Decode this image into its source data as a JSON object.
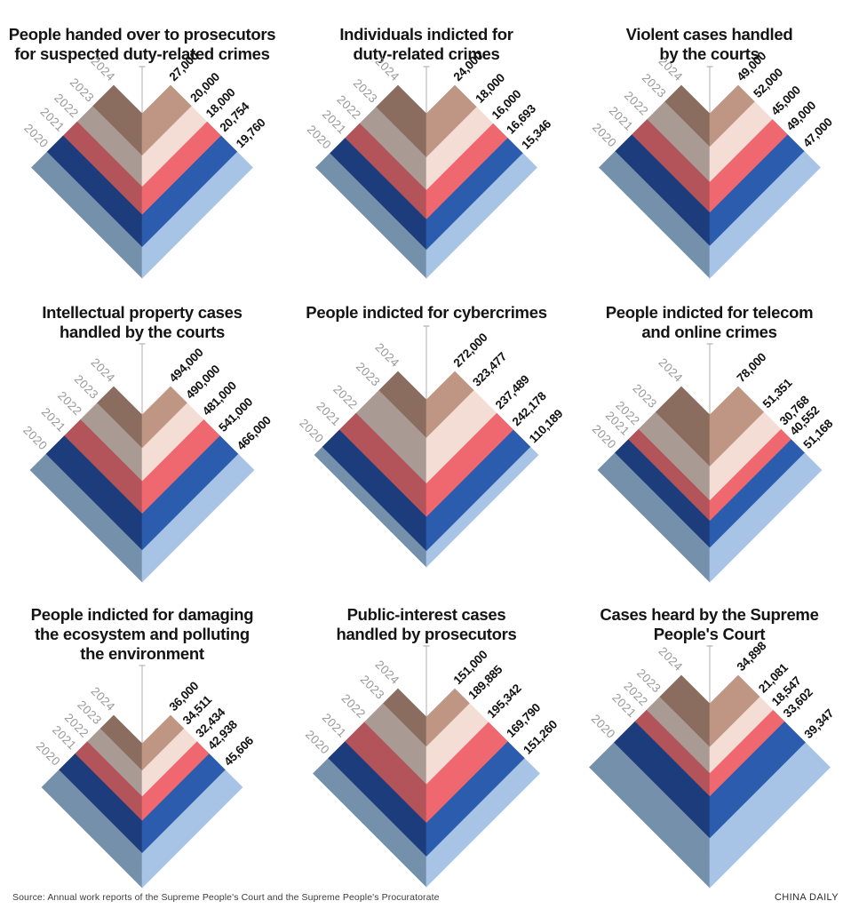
{
  "style": {
    "background": "#ffffff",
    "axis_line_color": "#b0b0b0",
    "year_label_color": "#9b9b9b",
    "value_label_color": "#111111",
    "title_color": "#141414",
    "band_colors": {
      "2024": {
        "left": "#8a6d5f",
        "right": "#be9683"
      },
      "2023": {
        "left": "#a99b94",
        "right": "#f3ddd5"
      },
      "2022": {
        "left": "#b3535a",
        "right": "#f0686f"
      },
      "2021": {
        "left": "#1d3c7c",
        "right": "#2b5cae"
      },
      "2020": {
        "left": "#7590ab",
        "right": "#a7c4e6"
      }
    }
  },
  "chart_data": [
    {
      "type": "bar",
      "variant": "nested-chevron",
      "title": "People handed over to prosecutors\nfor suspected duty-related crimes",
      "categories": [
        "2024",
        "2023",
        "2022",
        "2021",
        "2020"
      ],
      "values": [
        27000,
        20000,
        18000,
        20754,
        19760
      ],
      "value_labels": [
        "27,000",
        "20,000",
        "18,000",
        "20,754",
        "19,760"
      ],
      "layout": "years labeled on upper-left edge, values on upper-right edge, innermost band = 2024"
    },
    {
      "type": "bar",
      "variant": "nested-chevron",
      "title": "Individuals indicted for\nduty-related crimes",
      "categories": [
        "2024",
        "2023",
        "2022",
        "2021",
        "2020"
      ],
      "values": [
        24000,
        18000,
        16000,
        16693,
        15346
      ],
      "value_labels": [
        "24,000",
        "18,000",
        "16,000",
        "16,693",
        "15,346"
      ]
    },
    {
      "type": "bar",
      "variant": "nested-chevron",
      "title": "Violent cases handled\nby the courts",
      "categories": [
        "2024",
        "2023",
        "2022",
        "2021",
        "2020"
      ],
      "values": [
        49000,
        52000,
        45000,
        49000,
        47000
      ],
      "value_labels": [
        "49,000",
        "52,000",
        "45,000",
        "49,000",
        "47,000"
      ]
    },
    {
      "type": "bar",
      "variant": "nested-chevron",
      "title": "Intellectual property cases\nhandled by the courts",
      "categories": [
        "2024",
        "2023",
        "2022",
        "2021",
        "2020"
      ],
      "values": [
        494000,
        490000,
        481000,
        541000,
        466000
      ],
      "value_labels": [
        "494,000",
        "490,000",
        "481,000",
        "541,000",
        "466,000"
      ]
    },
    {
      "type": "bar",
      "variant": "nested-chevron",
      "title": "People indicted for cybercrimes",
      "categories": [
        "2024",
        "2023",
        "2022",
        "2021",
        "2020"
      ],
      "values": [
        272000,
        323477,
        237489,
        242178,
        110189
      ],
      "value_labels": [
        "272,000",
        "323,477",
        "237,489",
        "242,178",
        "110,189"
      ]
    },
    {
      "type": "bar",
      "variant": "nested-chevron",
      "title": "People indicted for telecom\nand online crimes",
      "categories": [
        "2024",
        "2023",
        "2022",
        "2021",
        "2020"
      ],
      "values": [
        78000,
        51351,
        30768,
        40552,
        51168
      ],
      "value_labels": [
        "78,000",
        "51,351",
        "30,768",
        "40,552",
        "51,168"
      ]
    },
    {
      "type": "bar",
      "variant": "nested-chevron",
      "title": "People indicted for damaging\nthe ecosystem and polluting\nthe environment",
      "categories": [
        "2024",
        "2023",
        "2022",
        "2021",
        "2020"
      ],
      "values": [
        36000,
        34511,
        32434,
        42938,
        45606
      ],
      "value_labels": [
        "36,000",
        "34,511",
        "32,434",
        "42,938",
        "45,606"
      ]
    },
    {
      "type": "bar",
      "variant": "nested-chevron",
      "title": "Public-interest cases\nhandled by prosecutors",
      "categories": [
        "2024",
        "2023",
        "2022",
        "2021",
        "2020"
      ],
      "values": [
        151000,
        189885,
        195342,
        169790,
        151260
      ],
      "value_labels": [
        "151,000",
        "189,885",
        "195,342",
        "169,790",
        "151,260"
      ]
    },
    {
      "type": "bar",
      "variant": "nested-chevron",
      "title": "Cases heard by the Supreme\nPeople's Court",
      "categories": [
        "2024",
        "2023",
        "2022",
        "2021",
        "2020"
      ],
      "values": [
        34898,
        21081,
        18547,
        33602,
        39347
      ],
      "value_labels": [
        "34,898",
        "21,081",
        "18,547",
        "33,602",
        "39,347"
      ]
    }
  ],
  "footer": {
    "source": "Source: Annual work reports of the Supreme People's Court and the Supreme People's Procuratorate",
    "brand": "CHINA DAILY"
  }
}
